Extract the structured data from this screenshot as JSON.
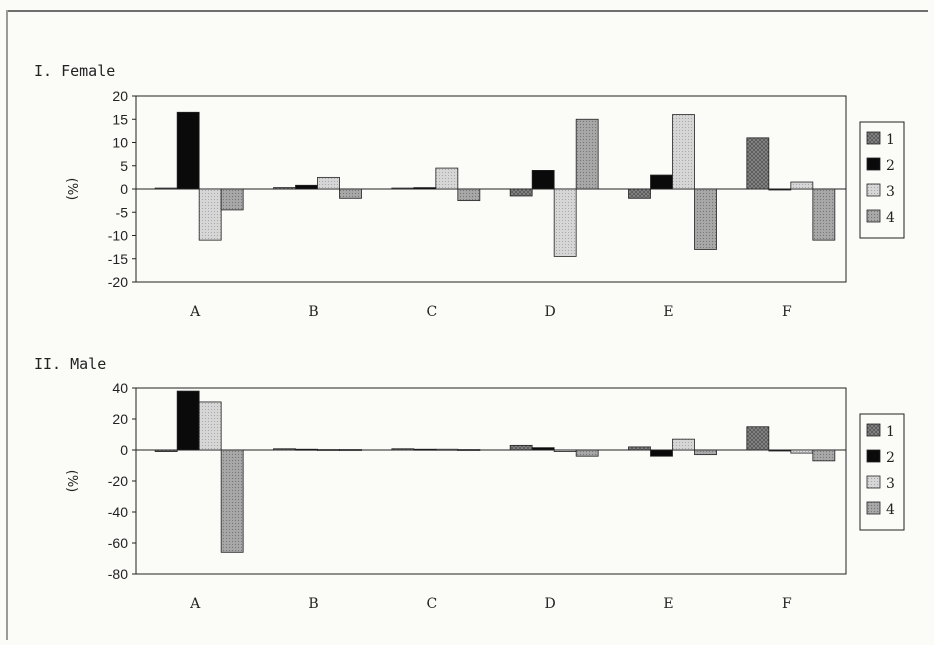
{
  "colors": {
    "s1": "#8a8a8a",
    "s2": "#0a0a0a",
    "s3": "#d6d6d6",
    "s4": "#a8a8a8"
  },
  "chart_data": [
    {
      "type": "bar",
      "title": "I. Female",
      "ylabel": "(%)",
      "categories": [
        "A",
        "B",
        "C",
        "D",
        "E",
        "F"
      ],
      "ylim": [
        -20,
        20
      ],
      "yticks": [
        20,
        15,
        10,
        5,
        0,
        -5,
        -10,
        -15,
        -20
      ],
      "legend_position": "right",
      "series": [
        {
          "name": "1",
          "values": [
            0.2,
            0.3,
            0.2,
            -1.5,
            -2,
            11
          ]
        },
        {
          "name": "2",
          "values": [
            16.5,
            0.8,
            0.3,
            4,
            3,
            0
          ]
        },
        {
          "name": "3",
          "values": [
            -11,
            2.5,
            4.5,
            -14.5,
            16,
            1.5
          ]
        },
        {
          "name": "4",
          "values": [
            -4.5,
            -2,
            -2.5,
            15,
            -13,
            -11
          ]
        }
      ]
    },
    {
      "type": "bar",
      "title": "II. Male",
      "ylabel": "(%)",
      "categories": [
        "A",
        "B",
        "C",
        "D",
        "E",
        "F"
      ],
      "ylim": [
        -80,
        40
      ],
      "yticks": [
        40,
        20,
        0,
        -20,
        -40,
        -60,
        -80
      ],
      "legend_position": "right",
      "series": [
        {
          "name": "1",
          "values": [
            -1,
            0.8,
            0.8,
            3,
            2,
            15
          ]
        },
        {
          "name": "2",
          "values": [
            38,
            0.5,
            0.5,
            1.5,
            -4,
            0
          ]
        },
        {
          "name": "3",
          "values": [
            31,
            0.3,
            0.5,
            -1,
            7,
            -2
          ]
        },
        {
          "name": "4",
          "values": [
            -66,
            0.3,
            0.3,
            -4,
            -3,
            -7
          ]
        }
      ]
    }
  ]
}
